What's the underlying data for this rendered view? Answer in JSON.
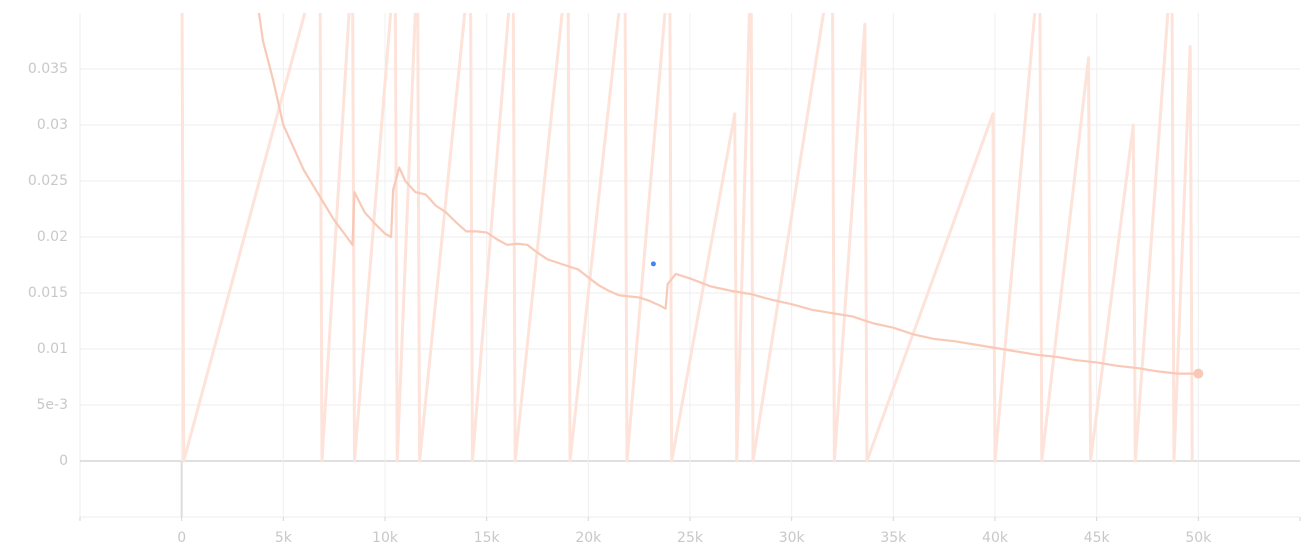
{
  "chart_data": {
    "type": "line",
    "xlim": [
      -5000,
      55000
    ],
    "ylim": [
      -0.005,
      0.04
    ],
    "xticks": [
      0,
      {
        "value": 5000,
        "label": "5k"
      },
      {
        "value": 10000,
        "label": "10k"
      },
      {
        "value": 15000,
        "label": "15k"
      },
      {
        "value": 20000,
        "label": "20k"
      },
      {
        "value": 25000,
        "label": "25k"
      },
      {
        "value": 30000,
        "label": "30k"
      },
      {
        "value": 35000,
        "label": "35k"
      },
      {
        "value": 40000,
        "label": "40k"
      },
      {
        "value": 45000,
        "label": "45k"
      },
      {
        "value": 50000,
        "label": "50k"
      }
    ],
    "yticks": [
      0,
      {
        "value": 0.005,
        "label": "5e-3"
      },
      0.01,
      0.015,
      0.02,
      0.025,
      0.03,
      0.035
    ],
    "grid": true,
    "series": [
      {
        "color": "#fde3da",
        "x": [
          0,
          100,
          6800,
          6900,
          8400,
          8500,
          10500,
          10600,
          11600,
          11700,
          14200,
          14300,
          16300,
          16400,
          19000,
          19100,
          21800,
          21900,
          24000,
          24100,
          27200,
          27300,
          28000,
          28100,
          32000,
          32100,
          33600,
          33700,
          39900,
          40000,
          42200,
          42300,
          44600,
          44700,
          46800,
          46900,
          48700,
          48800,
          49600,
          49700
        ],
        "values": [
          0.05,
          0,
          0.045,
          0,
          0.045,
          0,
          0.045,
          0,
          0.045,
          0,
          0.045,
          0,
          0.045,
          0,
          0.045,
          0,
          0.045,
          0,
          0.045,
          0,
          0.031,
          0,
          0.045,
          0,
          0.045,
          0,
          0.039,
          0,
          0.031,
          0,
          0.045,
          0,
          0.036,
          0,
          0.03,
          0,
          0.045,
          0,
          0.037,
          0
        ]
      },
      {
        "color": "#f9c9b8",
        "x": [
          3800,
          4000,
          4500,
          5000,
          5500,
          6000,
          6500,
          7000,
          7500,
          8000,
          8400,
          8500,
          9000,
          9500,
          10000,
          10300,
          10400,
          10700,
          11000,
          11500,
          12000,
          12500,
          13000,
          13500,
          14000,
          14500,
          15000,
          15500,
          16000,
          16500,
          17000,
          17500,
          18000,
          18500,
          19000,
          19500,
          20000,
          20500,
          21000,
          21500,
          22000,
          22500,
          23000,
          23500,
          23800,
          23900,
          24300,
          25000,
          26000,
          27000,
          28000,
          29000,
          30000,
          31000,
          32000,
          33000,
          34000,
          35000,
          36000,
          37000,
          38000,
          39000,
          40000,
          41000,
          42000,
          43000,
          44000,
          45000,
          46000,
          47000,
          48000,
          49000,
          50000
        ],
        "values": [
          0.04,
          0.0375,
          0.034,
          0.03,
          0.028,
          0.026,
          0.0245,
          0.023,
          0.0215,
          0.0203,
          0.0193,
          0.024,
          0.0222,
          0.0212,
          0.0203,
          0.02,
          0.0242,
          0.0262,
          0.025,
          0.024,
          0.0238,
          0.0228,
          0.0222,
          0.0213,
          0.0205,
          0.0205,
          0.0204,
          0.0198,
          0.0193,
          0.0194,
          0.0193,
          0.0186,
          0.018,
          0.0177,
          0.0174,
          0.0171,
          0.0164,
          0.0157,
          0.0152,
          0.0148,
          0.0147,
          0.0146,
          0.0143,
          0.0139,
          0.0136,
          0.0158,
          0.0167,
          0.0163,
          0.0156,
          0.0152,
          0.0149,
          0.0144,
          0.014,
          0.0135,
          0.0132,
          0.0129,
          0.0123,
          0.0119,
          0.0113,
          0.0109,
          0.0107,
          0.0104,
          0.0101,
          0.0098,
          0.0095,
          0.0093,
          0.009,
          0.0088,
          0.0085,
          0.0083,
          0.008,
          0.0078,
          0.0078
        ]
      }
    ],
    "highlight": {
      "x": 23200,
      "y": 0.0176,
      "color": "#4285f4"
    }
  }
}
